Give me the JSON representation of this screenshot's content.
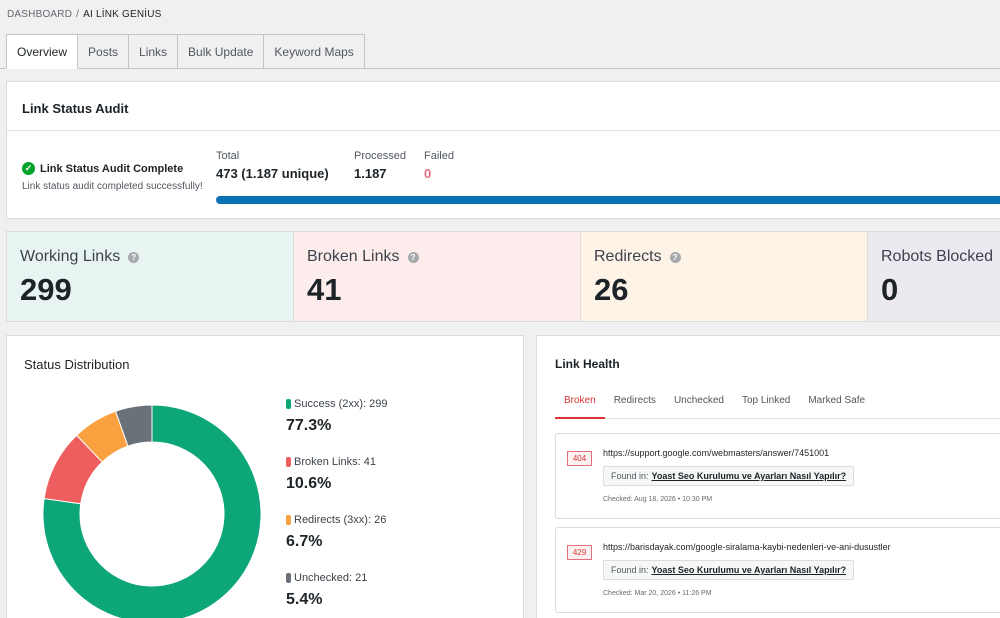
{
  "breadcrumb": {
    "root": "DASHBOARD",
    "separator": "/",
    "current": "AI LİNK GENİUS"
  },
  "tabs": [
    "Overview",
    "Posts",
    "Links",
    "Bulk Update",
    "Keyword Maps"
  ],
  "active_tab": "Overview",
  "audit": {
    "title": "Link Status Audit",
    "status_title": "Link Status Audit Complete",
    "status_sub": "Link status audit completed successfully!",
    "total_label": "Total",
    "total_value": "473 (1.187 unique)",
    "processed_label": "Processed",
    "processed_value": "1.187",
    "failed_label": "Failed",
    "failed_value": "0",
    "progress_percent": 100,
    "status_icon": "check-circle-icon"
  },
  "stats": [
    {
      "title": "Working Links",
      "value": "299",
      "bg": "#e8f4f2"
    },
    {
      "title": "Broken Links",
      "value": "41",
      "bg": "#fcecec"
    },
    {
      "title": "Redirects",
      "value": "26",
      "bg": "#fdf3e7"
    },
    {
      "title": "Robots Blocked",
      "value": "0",
      "bg": "#ece9f1"
    }
  ],
  "distribution": {
    "title": "Status Distribution",
    "items": [
      {
        "label": "Success (2xx): 299",
        "pct": "77.3%",
        "value": 299,
        "color": "#0ca678"
      },
      {
        "label": "Broken Links: 41",
        "pct": "10.6%",
        "value": 41,
        "color": "#ef5e5e"
      },
      {
        "label": "Redirects (3xx): 26",
        "pct": "6.7%",
        "value": 26,
        "color": "#f9a03f"
      },
      {
        "label": "Unchecked: 21",
        "pct": "5.4%",
        "value": 21,
        "color": "#6a7178"
      }
    ]
  },
  "health": {
    "title": "Link Health",
    "tabs": [
      "Broken",
      "Redirects",
      "Unchecked",
      "Top Linked",
      "Marked Safe"
    ],
    "active_tab": "Broken",
    "items": [
      {
        "code": "404",
        "url": "https://support.google.com/webmasters/answer/7451001",
        "found_label": "Found in:",
        "found_title": "Yoast Seo Kurulumu ve Ayarları Nasıl Yapılır?",
        "checked": "Checked: Aug 18, 2026 • 10:30 PM"
      },
      {
        "code": "429",
        "url": "https://barisdayak.com/google-siralama-kaybi-nedenleri-ve-ani-dusustler",
        "found_label": "Found in:",
        "found_title": "Yoast Seo Kurulumu ve Ayarları Nasıl Yapılır?",
        "checked": "Checked: Mar 20, 2026 • 11:26 PM"
      }
    ]
  }
}
